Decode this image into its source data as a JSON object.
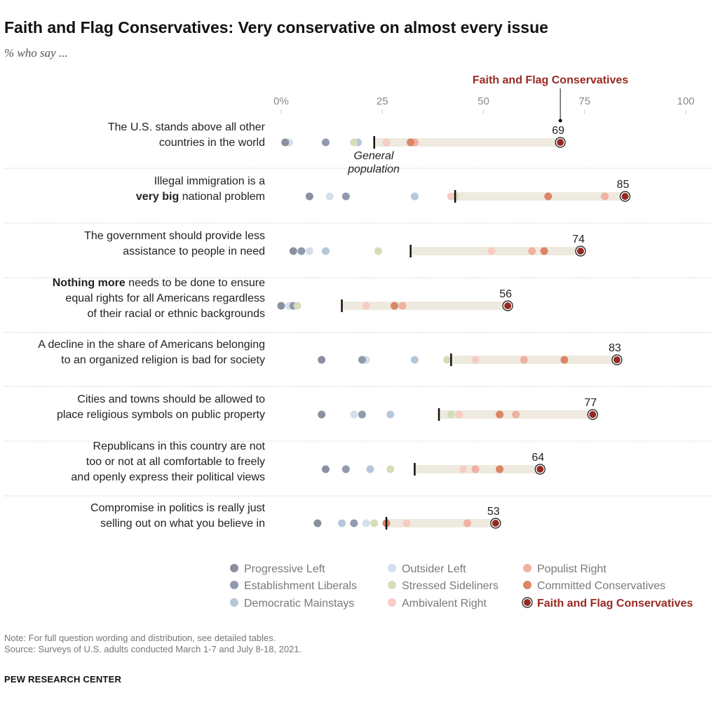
{
  "title": "Faith and Flag Conservatives: Very conservative on almost every issue",
  "subtitle": "% who say ...",
  "note": "Note: For full question wording and distribution, see detailed tables.",
  "source": "Source: Surveys of U.S. adults conducted March 1-7 and July 8-18, 2021.",
  "brand": "PEW RESEARCH CENTER",
  "colors": {
    "progressive_left": "#8a909f",
    "establishment_liberals": "#9099ad",
    "democratic_mainstays": "#b7c7da",
    "outsider_left": "#d3dfea",
    "stressed_sideliners": "#d6deb9",
    "ambivalent_right": "#f6ccc3",
    "populist_right": "#f0b0a2",
    "committed_conservatives": "#dd8566",
    "faith_flag": "#962a22",
    "bar": "#eeeadf",
    "highlight_text": "#962a22"
  },
  "chart_data": {
    "type": "scatter",
    "subtype": "dot-range",
    "title": "Faith and Flag Conservatives: Very conservative on almost every issue",
    "subtitle": "% who say ...",
    "xlim": [
      0,
      100
    ],
    "x_ticks": [
      0,
      25,
      50,
      75,
      100
    ],
    "x_tick_labels": [
      "0%",
      "25",
      "50",
      "75",
      "100"
    ],
    "highlight_series": "Faith and Flag Conservatives",
    "general_population_label": "General population",
    "legend": [
      "Progressive Left",
      "Outsider Left",
      "Populist Right",
      "Establishment Liberals",
      "Stressed Sideliners",
      "Committed Conservatives",
      "Democratic Mainstays",
      "Ambivalent Right",
      "Faith and Flag Conservatives"
    ],
    "legend_placement": "bottom",
    "categories": [
      {
        "pre": "",
        "bold": "",
        "post": "The U.S. stands above all other countries in the world"
      },
      {
        "pre": "Illegal immigration is a ",
        "bold": "very big",
        "post": " national problem"
      },
      {
        "pre": "",
        "bold": "",
        "post": "The government should provide less assistance to people in need"
      },
      {
        "pre": "",
        "bold": "Nothing more",
        "post": " needs to be done to ensure equal rights for all Americans regardless of their racial or ethnic backgrounds"
      },
      {
        "pre": "",
        "bold": "",
        "post": "A decline in the share of Americans belonging to an organized religion is bad for society"
      },
      {
        "pre": "",
        "bold": "",
        "post": "Cities and towns should be allowed to place religious symbols on public property"
      },
      {
        "pre": "",
        "bold": "",
        "post": "Republicans in this country are not too or not at all comfortable to freely and openly express their political views"
      },
      {
        "pre": "",
        "bold": "",
        "post": "Compromise in politics is really just selling out on what you believe in"
      }
    ],
    "category_lines": [
      [
        "The U.S. stands above all other",
        "countries in the world"
      ],
      [
        "Illegal immigration is a",
        "|very big| national problem"
      ],
      [
        "The government should provide less",
        "assistance to people in need"
      ],
      [
        "|Nothing more| needs to be done to ensure",
        "equal rights for all Americans regardless",
        "of their racial or ethnic backgrounds"
      ],
      [
        "A decline in the share of Americans belonging",
        "to an organized religion is bad for society"
      ],
      [
        "Cities and towns should be allowed to",
        "place religious symbols on public property"
      ],
      [
        "Republicans in this country are not",
        "too or not at all comfortable to freely",
        "and openly express their political views"
      ],
      [
        "Compromise in politics is really just",
        "selling out on what you believe in"
      ]
    ],
    "general_population": [
      23,
      43,
      32,
      15,
      42,
      39,
      33,
      26
    ],
    "series": [
      {
        "name": "Progressive Left",
        "values": [
          1,
          7,
          3,
          0,
          10,
          10,
          11,
          9
        ]
      },
      {
        "name": "Establishment Liberals",
        "values": [
          11,
          16,
          5,
          3,
          20,
          20,
          16,
          18
        ]
      },
      {
        "name": "Democratic Mainstays",
        "values": [
          19,
          33,
          11,
          3,
          33,
          27,
          22,
          15
        ]
      },
      {
        "name": "Outsider Left",
        "values": [
          2,
          12,
          7,
          2,
          21,
          18,
          16,
          21
        ]
      },
      {
        "name": "Stressed Sideliners",
        "values": [
          18,
          43,
          24,
          4,
          41,
          42,
          27,
          23
        ]
      },
      {
        "name": "Ambivalent Right",
        "values": [
          26,
          42,
          52,
          21,
          48,
          44,
          45,
          31
        ]
      },
      {
        "name": "Populist Right",
        "values": [
          33,
          80,
          62,
          30,
          60,
          58,
          48,
          46
        ]
      },
      {
        "name": "Committed Conservatives",
        "values": [
          32,
          66,
          65,
          28,
          70,
          54,
          54,
          26
        ]
      },
      {
        "name": "Faith and Flag Conservatives",
        "values": [
          69,
          85,
          74,
          56,
          83,
          77,
          64,
          53
        ]
      }
    ]
  }
}
